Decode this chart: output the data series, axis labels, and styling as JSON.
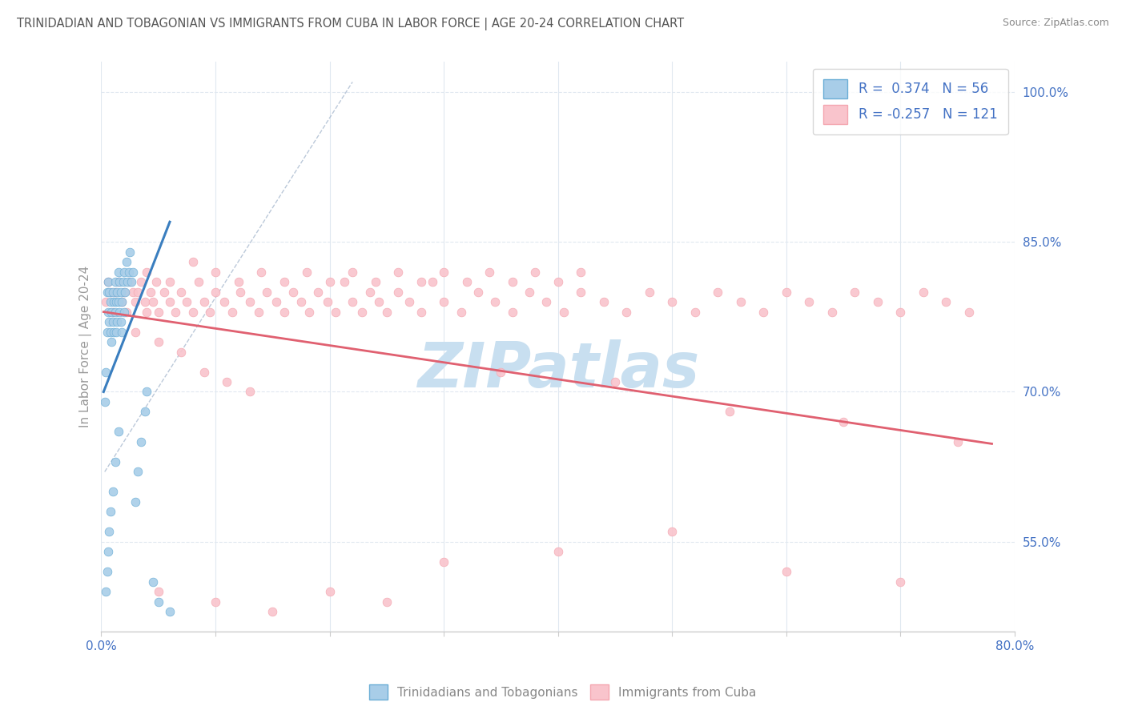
{
  "title": "TRINIDADIAN AND TOBAGONIAN VS IMMIGRANTS FROM CUBA IN LABOR FORCE | AGE 20-24 CORRELATION CHART",
  "source": "Source: ZipAtlas.com",
  "xmin": 0.0,
  "xmax": 0.8,
  "ymin": 0.46,
  "ymax": 1.03,
  "ylabel_values": [
    0.55,
    0.7,
    0.85,
    1.0
  ],
  "ylabel_labels": [
    "55.0%",
    "70.0%",
    "85.0%",
    "100.0%"
  ],
  "blue_face": "#a8cde8",
  "blue_edge": "#6baed6",
  "pink_face": "#f9c4cc",
  "pink_edge": "#f4a6b0",
  "trend_blue": "#3a7ebf",
  "trend_pink": "#e06070",
  "diag_color": "#aabbd0",
  "legend_blue_label": "R =  0.374   N = 56",
  "legend_pink_label": "R = -0.257   N = 121",
  "series1_label": "Trinidadians and Tobagonians",
  "series2_label": "Immigrants from Cuba",
  "watermark": "ZIPatlas",
  "watermark_color": "#c8dff0",
  "bg_color": "#ffffff",
  "grid_color": "#e0e8f0",
  "text_color": "#4472c4",
  "title_color": "#555555",
  "source_color": "#888888",
  "ylabel_color": "#888888",
  "blue_x": [
    0.003,
    0.004,
    0.005,
    0.005,
    0.006,
    0.006,
    0.007,
    0.007,
    0.008,
    0.008,
    0.009,
    0.009,
    0.01,
    0.01,
    0.011,
    0.011,
    0.012,
    0.012,
    0.013,
    0.013,
    0.014,
    0.014,
    0.015,
    0.015,
    0.016,
    0.016,
    0.017,
    0.017,
    0.018,
    0.018,
    0.019,
    0.02,
    0.02,
    0.021,
    0.022,
    0.023,
    0.024,
    0.025,
    0.026,
    0.028,
    0.03,
    0.032,
    0.035,
    0.038,
    0.04,
    0.045,
    0.05,
    0.06,
    0.004,
    0.005,
    0.006,
    0.007,
    0.008,
    0.01,
    0.012,
    0.015
  ],
  "blue_y": [
    0.69,
    0.72,
    0.76,
    0.8,
    0.78,
    0.81,
    0.77,
    0.8,
    0.76,
    0.79,
    0.75,
    0.78,
    0.77,
    0.8,
    0.76,
    0.79,
    0.78,
    0.81,
    0.76,
    0.79,
    0.77,
    0.8,
    0.79,
    0.82,
    0.78,
    0.81,
    0.77,
    0.8,
    0.76,
    0.79,
    0.81,
    0.78,
    0.82,
    0.8,
    0.83,
    0.81,
    0.82,
    0.84,
    0.81,
    0.82,
    0.59,
    0.62,
    0.65,
    0.68,
    0.7,
    0.51,
    0.49,
    0.48,
    0.5,
    0.52,
    0.54,
    0.56,
    0.58,
    0.6,
    0.63,
    0.66
  ],
  "pink_x": [
    0.004,
    0.006,
    0.008,
    0.01,
    0.012,
    0.015,
    0.018,
    0.02,
    0.022,
    0.025,
    0.028,
    0.03,
    0.032,
    0.035,
    0.038,
    0.04,
    0.043,
    0.045,
    0.048,
    0.05,
    0.055,
    0.06,
    0.065,
    0.07,
    0.075,
    0.08,
    0.085,
    0.09,
    0.095,
    0.1,
    0.108,
    0.115,
    0.122,
    0.13,
    0.138,
    0.145,
    0.153,
    0.16,
    0.168,
    0.175,
    0.182,
    0.19,
    0.198,
    0.205,
    0.213,
    0.22,
    0.228,
    0.235,
    0.243,
    0.25,
    0.26,
    0.27,
    0.28,
    0.29,
    0.3,
    0.315,
    0.33,
    0.345,
    0.36,
    0.375,
    0.39,
    0.405,
    0.42,
    0.44,
    0.46,
    0.48,
    0.5,
    0.52,
    0.54,
    0.56,
    0.58,
    0.6,
    0.62,
    0.64,
    0.66,
    0.68,
    0.7,
    0.72,
    0.74,
    0.76,
    0.04,
    0.06,
    0.08,
    0.1,
    0.12,
    0.14,
    0.16,
    0.18,
    0.2,
    0.22,
    0.24,
    0.26,
    0.28,
    0.3,
    0.32,
    0.34,
    0.36,
    0.38,
    0.4,
    0.42,
    0.03,
    0.05,
    0.07,
    0.09,
    0.11,
    0.13,
    0.35,
    0.45,
    0.55,
    0.65,
    0.75,
    0.05,
    0.1,
    0.15,
    0.2,
    0.25,
    0.3,
    0.4,
    0.5,
    0.6,
    0.7
  ],
  "pink_y": [
    0.79,
    0.81,
    0.8,
    0.78,
    0.8,
    0.81,
    0.79,
    0.8,
    0.78,
    0.81,
    0.8,
    0.79,
    0.8,
    0.81,
    0.79,
    0.78,
    0.8,
    0.79,
    0.81,
    0.78,
    0.8,
    0.79,
    0.78,
    0.8,
    0.79,
    0.78,
    0.81,
    0.79,
    0.78,
    0.8,
    0.79,
    0.78,
    0.8,
    0.79,
    0.78,
    0.8,
    0.79,
    0.78,
    0.8,
    0.79,
    0.78,
    0.8,
    0.79,
    0.78,
    0.81,
    0.79,
    0.78,
    0.8,
    0.79,
    0.78,
    0.8,
    0.79,
    0.78,
    0.81,
    0.79,
    0.78,
    0.8,
    0.79,
    0.78,
    0.8,
    0.79,
    0.78,
    0.8,
    0.79,
    0.78,
    0.8,
    0.79,
    0.78,
    0.8,
    0.79,
    0.78,
    0.8,
    0.79,
    0.78,
    0.8,
    0.79,
    0.78,
    0.8,
    0.79,
    0.78,
    0.82,
    0.81,
    0.83,
    0.82,
    0.81,
    0.82,
    0.81,
    0.82,
    0.81,
    0.82,
    0.81,
    0.82,
    0.81,
    0.82,
    0.81,
    0.82,
    0.81,
    0.82,
    0.81,
    0.82,
    0.76,
    0.75,
    0.74,
    0.72,
    0.71,
    0.7,
    0.72,
    0.71,
    0.68,
    0.67,
    0.65,
    0.5,
    0.49,
    0.48,
    0.5,
    0.49,
    0.53,
    0.54,
    0.56,
    0.52,
    0.51
  ],
  "blue_trend_x": [
    0.002,
    0.06
  ],
  "blue_trend_y": [
    0.7,
    0.87
  ],
  "pink_trend_x": [
    0.002,
    0.78
  ],
  "pink_trend_y": [
    0.78,
    0.648
  ]
}
